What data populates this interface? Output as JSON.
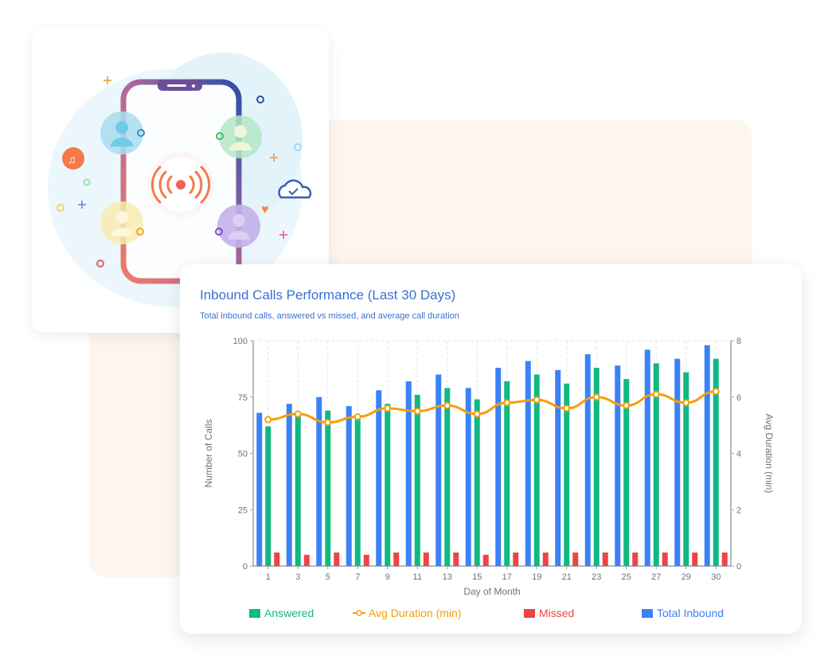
{
  "colors": {
    "answered": "#10b981",
    "avg_duration": "#f59e0b",
    "missed": "#ef4444",
    "total_inbound": "#3b82f6",
    "title": "#3b6fd4"
  },
  "illustration": {
    "icons": [
      "phone-icon",
      "broadcast-signal-icon",
      "user-avatar-icon",
      "music-chat-icon",
      "cloud-check-icon",
      "heart-icon"
    ]
  },
  "chart_data": {
    "type": "bar",
    "title": "Inbound Calls Performance (Last 30 Days)",
    "subtitle": "Total inbound calls, answered vs missed, and average call duration",
    "xlabel": "Day of Month",
    "ylabel": "Number of Calls",
    "y2label": "Avg Duration (min)",
    "ylim": [
      0,
      100
    ],
    "y2lim": [
      0,
      8
    ],
    "yticks": [
      "0",
      "25",
      "50",
      "75",
      "100"
    ],
    "y2ticks": [
      "0",
      "2",
      "4",
      "6",
      "8"
    ],
    "grid": "vertical dashed",
    "legend_position": "bottom",
    "categories": [
      "1",
      "3",
      "5",
      "7",
      "9",
      "11",
      "13",
      "15",
      "17",
      "19",
      "21",
      "23",
      "25",
      "27",
      "29",
      "30"
    ],
    "series": [
      {
        "name": "Total Inbound",
        "type": "bar",
        "axis": "left",
        "values": [
          68,
          72,
          75,
          71,
          78,
          82,
          85,
          79,
          88,
          91,
          87,
          94,
          89,
          96,
          92,
          98
        ]
      },
      {
        "name": "Answered",
        "type": "bar",
        "axis": "left",
        "values": [
          62,
          68,
          69,
          67,
          72,
          76,
          79,
          74,
          82,
          85,
          81,
          88,
          83,
          90,
          86,
          92
        ]
      },
      {
        "name": "Missed",
        "type": "bar",
        "axis": "left",
        "values": [
          6,
          5,
          6,
          5,
          6,
          6,
          6,
          5,
          6,
          6,
          6,
          6,
          6,
          6,
          6,
          6
        ]
      },
      {
        "name": "Avg Duration (min)",
        "type": "line",
        "axis": "right",
        "values": [
          5.2,
          5.4,
          5.1,
          5.3,
          5.6,
          5.5,
          5.7,
          5.4,
          5.8,
          5.9,
          5.6,
          6.0,
          5.7,
          6.1,
          5.8,
          6.2
        ]
      }
    ],
    "legend": [
      "Answered",
      "Avg Duration (min)",
      "Missed",
      "Total Inbound"
    ]
  }
}
